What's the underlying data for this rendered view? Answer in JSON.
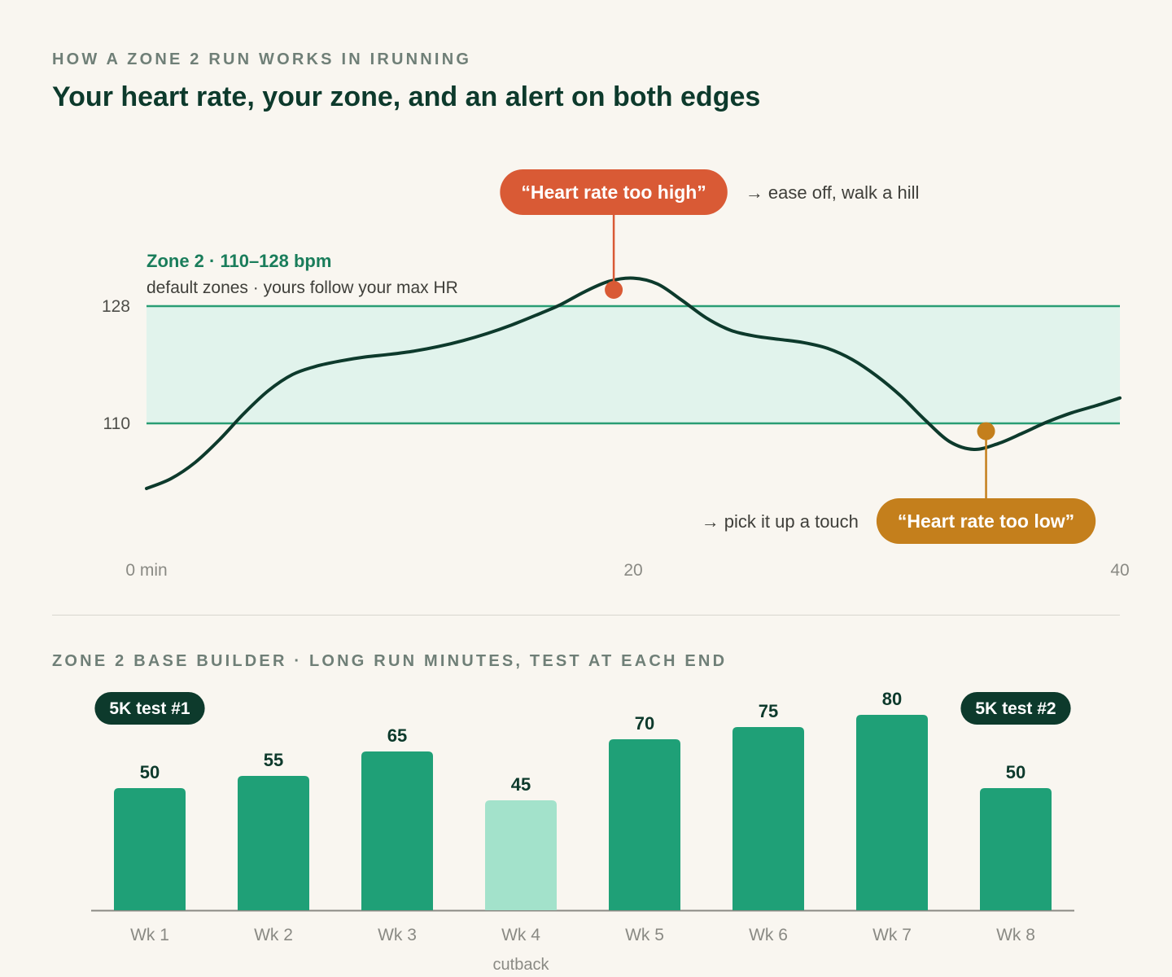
{
  "header": {
    "eyebrow": "HOW A ZONE 2 RUN WORKS IN IRUNNING",
    "title": "Your heart rate, your zone, and an alert on both edges"
  },
  "colors": {
    "background": "#f9f6f0",
    "ink": "#0d3a2c",
    "zone_line": "#2a9d74",
    "zone_fill": "#e1f3ec",
    "zone_label": "#1a7d5b",
    "alert_high": "#d95a35",
    "alert_low": "#c47f1c",
    "bar": "#1fa077",
    "bar_cutback": "#a3e2cb",
    "muted": "#7a7a74"
  },
  "chart_data": [
    {
      "type": "line",
      "xlim": [
        0,
        40
      ],
      "ylim": [
        96,
        133
      ],
      "x_ticks": [
        "0 min",
        "20",
        "40"
      ],
      "y_ticks": [
        128,
        110
      ],
      "zone": {
        "low": 110,
        "high": 128,
        "label": "Zone 2 · 110–128 bpm",
        "note": "default zones · yours follow your max HR"
      },
      "series": [
        {
          "points": [
            [
              0,
              100
            ],
            [
              1,
              101.5
            ],
            [
              2,
              104
            ],
            [
              3,
              107.5
            ],
            [
              4,
              111.5
            ],
            [
              5,
              115
            ],
            [
              6,
              117.5
            ],
            [
              7,
              118.8
            ],
            [
              8,
              119.6
            ],
            [
              9,
              120.2
            ],
            [
              10,
              120.6
            ],
            [
              11,
              121.1
            ],
            [
              12,
              121.8
            ],
            [
              13,
              122.7
            ],
            [
              14,
              123.8
            ],
            [
              15,
              125.1
            ],
            [
              16,
              126.6
            ],
            [
              17,
              128.2
            ],
            [
              18,
              130.2
            ],
            [
              19,
              131.8
            ],
            [
              20,
              132.3
            ],
            [
              21,
              131.4
            ],
            [
              22,
              128.9
            ],
            [
              23,
              126.2
            ],
            [
              24,
              124.3
            ],
            [
              25,
              123.4
            ],
            [
              26,
              122.9
            ],
            [
              27,
              122.4
            ],
            [
              28,
              121.5
            ],
            [
              29,
              119.8
            ],
            [
              30,
              117.3
            ],
            [
              31,
              114.2
            ],
            [
              32,
              110.5
            ],
            [
              33,
              107.2
            ],
            [
              34,
              106
            ],
            [
              35,
              106.9
            ],
            [
              36,
              108.5
            ],
            [
              37,
              110.2
            ],
            [
              38,
              111.6
            ],
            [
              39,
              112.7
            ],
            [
              40,
              113.9
            ]
          ]
        }
      ],
      "annotations": [
        {
          "kind": "high",
          "x": 19.2,
          "y": 130.5,
          "label": "“Heart rate too high”",
          "hint": "→ ease off, walk a hill"
        },
        {
          "kind": "low",
          "x": 34.5,
          "y": 108.8,
          "label": "“Heart rate too low”",
          "hint": "→ pick it up a touch"
        }
      ]
    },
    {
      "type": "bar",
      "title": "ZONE 2 BASE BUILDER · LONG RUN MINUTES, TEST AT EACH END",
      "categories": [
        "Wk 1",
        "Wk 2",
        "Wk 3",
        "Wk 4",
        "Wk 5",
        "Wk 6",
        "Wk 7",
        "Wk 8"
      ],
      "values": [
        50,
        55,
        65,
        45,
        70,
        75,
        80,
        50
      ],
      "sublabels": [
        "",
        "",
        "",
        "cutback",
        "",
        "",
        "",
        ""
      ],
      "highlight": [
        false,
        false,
        false,
        true,
        false,
        false,
        false,
        false
      ],
      "tests": [
        {
          "week_index": 0,
          "label": "5K test #1"
        },
        {
          "week_index": 7,
          "label": "5K test #2"
        }
      ]
    }
  ]
}
